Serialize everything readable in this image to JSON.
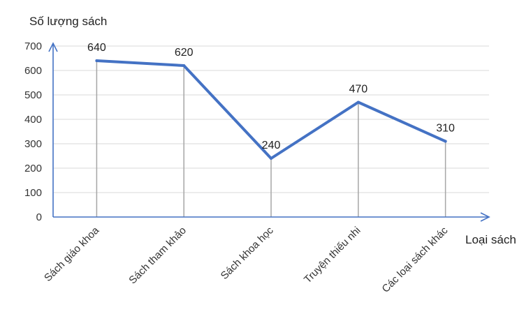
{
  "chart_data": {
    "type": "line",
    "categories": [
      "Sách giáo khoa",
      "Sách tham khảo",
      "Sách khoa học",
      "Truyện thiếu nhi",
      "Các loại sách khác"
    ],
    "series": [
      {
        "values": [
          640,
          620,
          240,
          470,
          310
        ]
      }
    ],
    "ylabel": "Số lượng sách",
    "xlabel": "Loại sách",
    "ylim": [
      0,
      700
    ],
    "yticks": [
      0,
      100,
      200,
      300,
      400,
      500,
      600,
      700
    ],
    "grid": true,
    "drop_lines": true,
    "data_labels": true,
    "colors": {
      "line": "#4472C4",
      "axis": "#4472C4",
      "grid": "#d9d9d9",
      "drop": "#a6a6a6"
    }
  }
}
